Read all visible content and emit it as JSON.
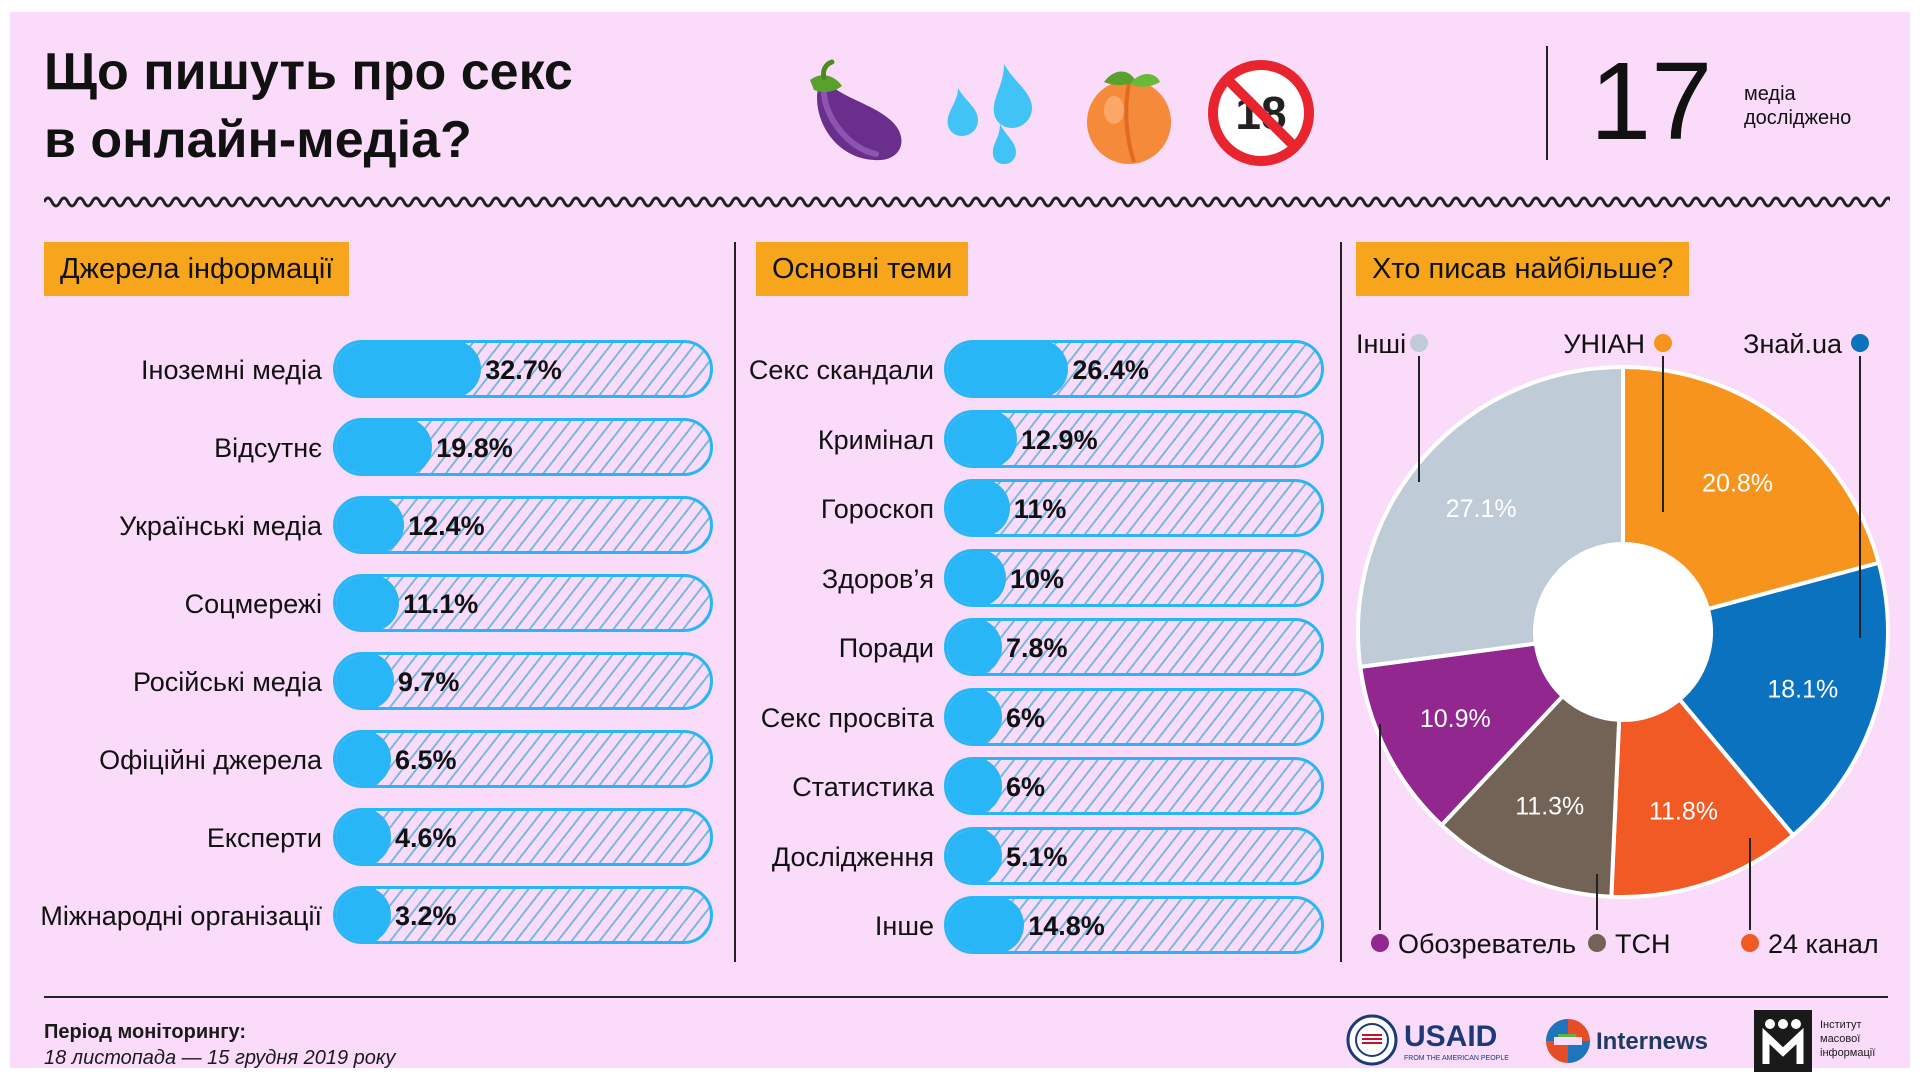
{
  "title": {
    "line1": "Що пишуть про секс",
    "line2": "в онлайн-медіа?"
  },
  "emojis": [
    "eggplant-icon",
    "sweat-droplets-icon",
    "peach-icon",
    "no-one-under-eighteen-icon"
  ],
  "emoji_glyphs": {
    "no18": "18"
  },
  "counter": {
    "value": "17",
    "label_line1": "медіа",
    "label_line2": "досліджено"
  },
  "sections": {
    "sources": "Джерела інформації",
    "topics": "Основні теми",
    "who": "Хто писав найбільше?"
  },
  "colors": {
    "background": "#fadcfa",
    "accent_tag": "#f7a51c",
    "bar_fill": "#29b6f6"
  },
  "chart_data": [
    {
      "type": "bar",
      "title": "Джерела інформації",
      "categories": [
        "Іноземні медіа",
        "Відсутнє",
        "Українські медіа",
        "Соцмережі",
        "Російські медіа",
        "Офіційні джерела",
        "Експерти",
        "Міжнародні організації"
      ],
      "values": [
        32.7,
        19.8,
        12.4,
        11.1,
        9.7,
        6.5,
        4.6,
        3.2
      ],
      "value_labels": [
        "32.7%",
        "19.8%",
        "12.4%",
        "11.1%",
        "9.7%",
        "6.5%",
        "4.6%",
        "3.2%"
      ],
      "ylim": [
        0,
        100
      ]
    },
    {
      "type": "bar",
      "title": "Основні теми",
      "categories": [
        "Секс скандали",
        "Кримінал",
        "Гороскоп",
        "Здоров’я",
        "Поради",
        "Секс просвіта",
        "Статистика",
        "Дослідження",
        "Інше"
      ],
      "values": [
        26.4,
        12.9,
        11,
        10,
        7.8,
        6,
        6,
        5.1,
        14.8
      ],
      "value_labels": [
        "26.4%",
        "12.9%",
        "11%",
        "10%",
        "7.8%",
        "6%",
        "6%",
        "5.1%",
        "14.8%"
      ],
      "ylim": [
        0,
        100
      ]
    },
    {
      "type": "pie",
      "title": "Хто писав найбільше?",
      "categories": [
        "УНІАН",
        "Знай.ua",
        "24 канал",
        "ТСН",
        "Обозреватель",
        "Інші"
      ],
      "values": [
        20.8,
        18.1,
        11.8,
        11.3,
        10.9,
        27.1
      ],
      "value_labels": [
        "20.8%",
        "18.1%",
        "11.8%",
        "11.3%",
        "10.9%",
        "27.1%"
      ],
      "colors": [
        "#f7941d",
        "#0a72bf",
        "#f15a24",
        "#736357",
        "#92278f",
        "#bfcbd6"
      ]
    }
  ],
  "footer": {
    "period_label": "Період моніторингу:",
    "period_dates": "18 листопада — 15 грудня 2019 року",
    "logos": {
      "usaid": "USAID",
      "usaid_tagline": "FROM THE AMERICAN PEOPLE",
      "internews": "Internews",
      "imi_line1": "Інститут",
      "imi_line2": "масової",
      "imi_line3": "інформації"
    }
  }
}
